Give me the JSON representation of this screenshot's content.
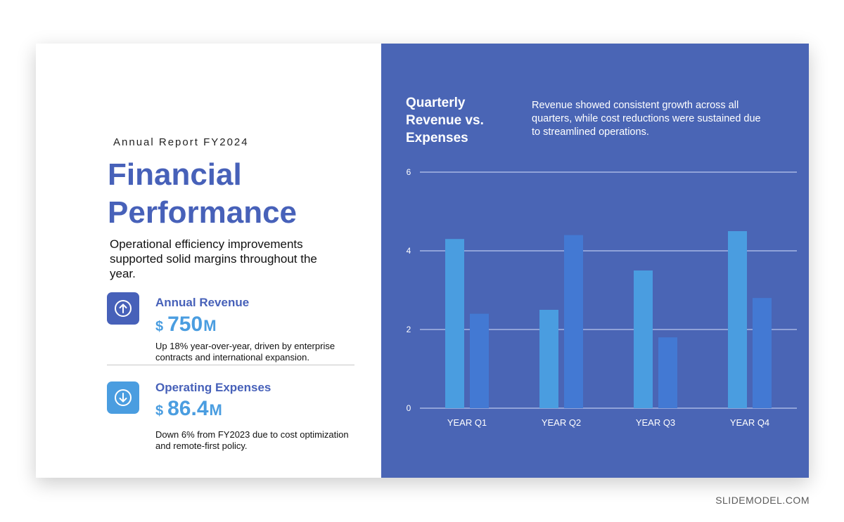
{
  "report": {
    "eyebrow": "Annual Report FY2024",
    "title_line1": "Financial",
    "title_line2": "Performance",
    "lead": "Operational efficiency improvements supported solid margins throughout the year."
  },
  "kpis": [
    {
      "label": "Annual Revenue",
      "currency": "$",
      "value": "750",
      "unit": "M",
      "desc": "Up 18% year-over-year, driven by enterprise contracts and international expansion.",
      "icon": "arrow-up-circle-icon",
      "icon_color": "#4761b9"
    },
    {
      "label": "Operating Expenses",
      "currency": "$",
      "value": "86.4",
      "unit": "M",
      "desc": "Down 6% from FY2023 due to cost optimization and remote-first policy.",
      "icon": "arrow-down-circle-icon",
      "icon_color": "#4a9de0"
    }
  ],
  "chart_header": {
    "title_line1": "Quarterly",
    "title_line2": "Revenue vs.",
    "title_line3": "Expenses",
    "note": "Revenue showed consistent growth across all quarters, while cost reductions were sustained due to streamlined operations."
  },
  "chart_data": {
    "type": "bar",
    "categories": [
      "YEAR Q1",
      "YEAR Q2",
      "YEAR Q3",
      "YEAR Q4"
    ],
    "series": [
      {
        "values": [
          4.3,
          2.5,
          3.5,
          4.5
        ],
        "color": "#4a9de0"
      },
      {
        "values": [
          2.4,
          4.4,
          1.8,
          2.8
        ],
        "color": "#4379d3"
      }
    ],
    "ylim": [
      0,
      6
    ],
    "yticks": [
      "0",
      "2",
      "4",
      "6"
    ],
    "grid": true,
    "background": "#4a65b5",
    "gridline_color": "#d6defa"
  },
  "credit": "SLIDEMODEL.COM"
}
